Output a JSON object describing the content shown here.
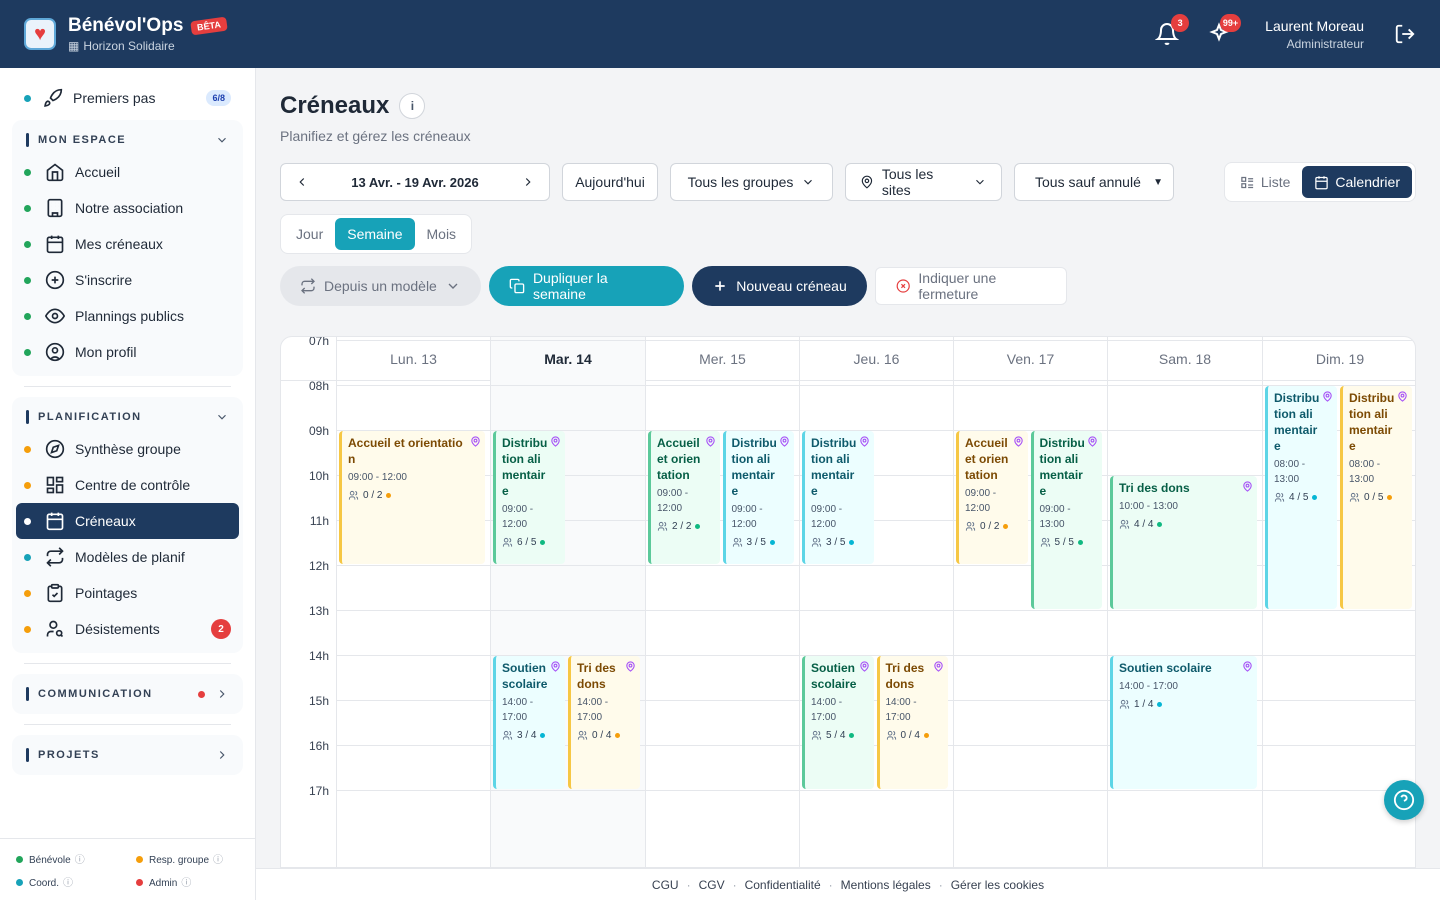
{
  "header": {
    "app_name": "Bénévol'Ops",
    "beta": "BÊTA",
    "org": "Horizon Solidaire",
    "notif_count": "3",
    "ai_count": "99+",
    "user_name": "Laurent Moreau",
    "user_role": "Administrateur"
  },
  "sidebar": {
    "first_steps": {
      "label": "Premiers pas",
      "progress": "6/8"
    },
    "mon_espace": {
      "title": "MON ESPACE",
      "items": [
        {
          "label": "Accueil",
          "icon": "home-icon"
        },
        {
          "label": "Notre association",
          "icon": "building-icon"
        },
        {
          "label": "Mes créneaux",
          "icon": "calendar-icon"
        },
        {
          "label": "S'inscrire",
          "icon": "plus-circle-icon"
        },
        {
          "label": "Plannings publics",
          "icon": "eye-icon"
        },
        {
          "label": "Mon profil",
          "icon": "user-circle-icon"
        }
      ]
    },
    "planification": {
      "title": "PLANIFICATION",
      "items": [
        {
          "label": "Synthèse groupe",
          "icon": "compass-icon"
        },
        {
          "label": "Centre de contrôle",
          "icon": "grid-icon"
        },
        {
          "label": "Créneaux",
          "icon": "calendar-icon"
        },
        {
          "label": "Modèles de planif",
          "icon": "repeat-icon"
        },
        {
          "label": "Pointages",
          "icon": "clipboard-icon"
        },
        {
          "label": "Désistements",
          "icon": "user-search-icon",
          "count": "2"
        }
      ]
    },
    "communication": {
      "title": "COMMUNICATION"
    },
    "projets": {
      "title": "PROJETS"
    },
    "legend": {
      "benevole": "Bénévole",
      "resp_groupe": "Resp. groupe",
      "coord": "Coord.",
      "admin": "Admin"
    }
  },
  "main": {
    "title": "Créneaux",
    "subtitle": "Planifiez et gérez les créneaux",
    "date_range": "13 Avr. - 19 Avr. 2026",
    "today": "Aujourd'hui",
    "groups_filter": "Tous les groupes",
    "sites_filter": "Tous les sites",
    "status_filter": "Tous sauf annulé",
    "view_list": "Liste",
    "view_calendar": "Calendrier",
    "period": {
      "day": "Jour",
      "week": "Semaine",
      "month": "Mois"
    },
    "actions": {
      "from_model": "Depuis un modèle",
      "duplicate": "Dupliquer la semaine",
      "new_slot": "Nouveau créneau",
      "closure": "Indiquer une fermeture"
    }
  },
  "calendar": {
    "days": [
      "Lun. 13",
      "Mar. 14",
      "Mer. 15",
      "Jeu. 16",
      "Ven. 17",
      "Sam. 18",
      "Dim. 19"
    ],
    "hours": [
      "07h",
      "08h",
      "09h",
      "10h",
      "11h",
      "12h",
      "13h",
      "14h",
      "15h",
      "16h",
      "17h"
    ],
    "events": [
      {
        "day": 0,
        "start": 9,
        "end": 12,
        "col": 0,
        "cols": 1,
        "color": "yellow",
        "title": "Accueil et orientation",
        "time": "09:00 - 12:00",
        "count": "0 / 2",
        "dot": "#f59e0b"
      },
      {
        "day": 1,
        "start": 9,
        "end": 12,
        "col": 0,
        "cols": 2,
        "color": "green",
        "title": "Distribution alimentaire",
        "time": "09:00 - 12:00",
        "count": "6 / 5",
        "dot": "#10b981"
      },
      {
        "day": 1,
        "start": 14,
        "end": 17,
        "col": 0,
        "cols": 2,
        "color": "cyan",
        "title": "Soutien scolaire",
        "time": "14:00 - 17:00",
        "count": "3 / 4",
        "dot": "#06b6d4"
      },
      {
        "day": 1,
        "start": 14,
        "end": 17,
        "col": 1,
        "cols": 2,
        "color": "yellow",
        "title": "Tri des dons",
        "time": "14:00 - 17:00",
        "count": "0 / 4",
        "dot": "#f59e0b"
      },
      {
        "day": 2,
        "start": 9,
        "end": 12,
        "col": 0,
        "cols": 2,
        "color": "green",
        "title": "Accueil et orientation",
        "time": "09:00 - 12:00",
        "count": "2 / 2",
        "dot": "#10b981"
      },
      {
        "day": 2,
        "start": 9,
        "end": 12,
        "col": 1,
        "cols": 2,
        "color": "cyan",
        "title": "Distribution alimentaire",
        "time": "09:00 - 12:00",
        "count": "3 / 5",
        "dot": "#06b6d4"
      },
      {
        "day": 3,
        "start": 9,
        "end": 12,
        "col": 0,
        "cols": 2,
        "color": "cyan",
        "title": "Distribution alimentaire",
        "time": "09:00 - 12:00",
        "count": "3 / 5",
        "dot": "#06b6d4"
      },
      {
        "day": 3,
        "start": 14,
        "end": 17,
        "col": 0,
        "cols": 2,
        "color": "green",
        "title": "Soutien scolaire",
        "time": "14:00 - 17:00",
        "count": "5 / 4",
        "dot": "#10b981"
      },
      {
        "day": 3,
        "start": 14,
        "end": 17,
        "col": 1,
        "cols": 2,
        "color": "yellow",
        "title": "Tri des dons",
        "time": "14:00 - 17:00",
        "count": "0 / 4",
        "dot": "#f59e0b"
      },
      {
        "day": 4,
        "start": 9,
        "end": 12,
        "col": 0,
        "cols": 2,
        "color": "yellow",
        "title": "Accueil et orientation",
        "time": "09:00 - 12:00",
        "count": "0 / 2",
        "dot": "#f59e0b"
      },
      {
        "day": 4,
        "start": 9,
        "end": 13,
        "col": 1,
        "cols": 2,
        "color": "green",
        "title": "Distribution alimentaire",
        "time": "09:00 - 13:00",
        "count": "5 / 5",
        "dot": "#10b981"
      },
      {
        "day": 5,
        "start": 10,
        "end": 13,
        "col": 0,
        "cols": 1,
        "color": "green",
        "title": "Tri des dons",
        "time": "10:00 - 13:00",
        "count": "4 / 4",
        "dot": "#10b981"
      },
      {
        "day": 5,
        "start": 14,
        "end": 17,
        "col": 0,
        "cols": 1,
        "color": "cyan",
        "title": "Soutien scolaire",
        "time": "14:00 - 17:00",
        "count": "1 / 4",
        "dot": "#06b6d4"
      },
      {
        "day": 6,
        "start": 8,
        "end": 13,
        "col": 0,
        "cols": 2,
        "color": "cyan",
        "title": "Distribution alimentaire",
        "time": "08:00 - 13:00",
        "count": "4 / 5",
        "dot": "#06b6d4"
      },
      {
        "day": 6,
        "start": 8,
        "end": 13,
        "col": 1,
        "cols": 2,
        "color": "yellow",
        "title": "Distribution alimentaire",
        "time": "08:00 - 13:00",
        "count": "0 / 5",
        "dot": "#f59e0b"
      }
    ]
  },
  "footer": [
    "CGU",
    "CGV",
    "Confidentialité",
    "Mentions légales",
    "Gérer les cookies"
  ]
}
